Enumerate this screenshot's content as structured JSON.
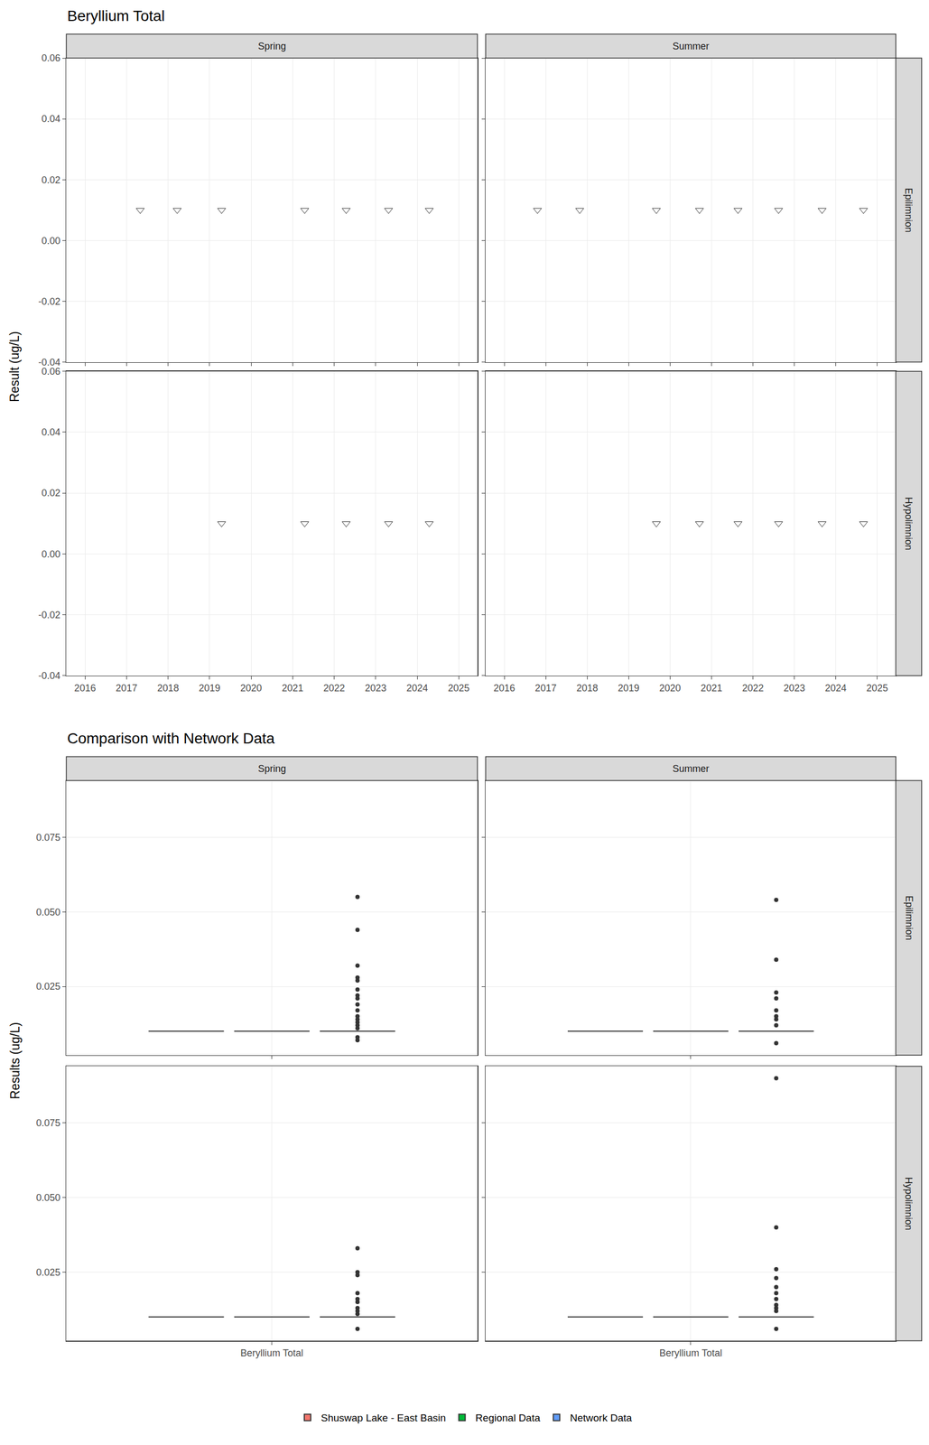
{
  "chart_data": [
    {
      "type": "scatter",
      "title": "Beryllium Total",
      "y_label": "Result (ug/L)",
      "columns": [
        "Spring",
        "Summer"
      ],
      "rows": [
        "Epilimnion",
        "Hypolimnion"
      ],
      "marker": "triangle-down-open",
      "grid": true,
      "xlim": [
        2015.55,
        2025.45
      ],
      "xticks": [
        2016,
        2017,
        2018,
        2019,
        2020,
        2021,
        2022,
        2023,
        2024,
        2025
      ],
      "ylim": [
        -0.04,
        0.06
      ],
      "yticks": [
        -0.04,
        -0.02,
        {
          "value": 0,
          "label": "0.00"
        },
        0.02,
        0.04,
        0.06
      ],
      "panels": [
        {
          "column": "Spring",
          "row": "Epilimnion",
          "x": [
            2017.33,
            2018.22,
            2019.29,
            2021.29,
            2022.29,
            2023.31,
            2024.29
          ],
          "values": [
            0.01,
            0.01,
            0.01,
            0.01,
            0.01,
            0.01,
            0.01
          ]
        },
        {
          "column": "Summer",
          "row": "Epilimnion",
          "x": [
            2016.8,
            2017.82,
            2019.67,
            2020.71,
            2021.64,
            2022.62,
            2023.67,
            2024.67
          ],
          "values": [
            0.01,
            0.01,
            0.01,
            0.01,
            0.01,
            0.01,
            0.01,
            0.01
          ]
        },
        {
          "column": "Spring",
          "row": "Hypolimnion",
          "x": [
            2019.29,
            2021.29,
            2022.29,
            2023.31,
            2024.29
          ],
          "values": [
            0.01,
            0.01,
            0.01,
            0.01,
            0.01
          ]
        },
        {
          "column": "Summer",
          "row": "Hypolimnion",
          "x": [
            2019.67,
            2020.71,
            2021.64,
            2022.62,
            2023.67,
            2024.67
          ],
          "values": [
            0.01,
            0.01,
            0.01,
            0.01,
            0.01,
            0.01
          ]
        }
      ]
    },
    {
      "type": "box",
      "title": "Comparison with Network Data",
      "y_label": "Results (ug/L)",
      "categories": [
        "Beryllium Total"
      ],
      "columns": [
        "Spring",
        "Summer"
      ],
      "rows": [
        "Epilimnion",
        "Hypolimnion"
      ],
      "grid": true,
      "legend": "bottom",
      "ylim": [
        0.002,
        0.094
      ],
      "yticks": [
        0.025,
        {
          "value": 0.05,
          "label": "0.050"
        },
        0.075
      ],
      "series": [
        {
          "name": "Shuswap Lake - East Basin",
          "color": "#F8766D",
          "panels": [
            {
              "column": "Spring",
              "row": "Epilimnion",
              "q1": 0.01,
              "median": 0.01,
              "q3": 0.01,
              "whisker_low": 0.01,
              "whisker_high": 0.01,
              "outliers": []
            },
            {
              "column": "Summer",
              "row": "Epilimnion",
              "q1": 0.01,
              "median": 0.01,
              "q3": 0.01,
              "whisker_low": 0.01,
              "whisker_high": 0.01,
              "outliers": []
            },
            {
              "column": "Spring",
              "row": "Hypolimnion",
              "q1": 0.01,
              "median": 0.01,
              "q3": 0.01,
              "whisker_low": 0.01,
              "whisker_high": 0.01,
              "outliers": []
            },
            {
              "column": "Summer",
              "row": "Hypolimnion",
              "q1": 0.01,
              "median": 0.01,
              "q3": 0.01,
              "whisker_low": 0.01,
              "whisker_high": 0.01,
              "outliers": []
            }
          ]
        },
        {
          "name": "Regional Data",
          "color": "#00BA38",
          "panels": [
            {
              "column": "Spring",
              "row": "Epilimnion",
              "q1": 0.01,
              "median": 0.01,
              "q3": 0.01,
              "whisker_low": 0.01,
              "whisker_high": 0.01,
              "outliers": []
            },
            {
              "column": "Summer",
              "row": "Epilimnion",
              "q1": 0.01,
              "median": 0.01,
              "q3": 0.01,
              "whisker_low": 0.01,
              "whisker_high": 0.01,
              "outliers": []
            },
            {
              "column": "Spring",
              "row": "Hypolimnion",
              "q1": 0.01,
              "median": 0.01,
              "q3": 0.01,
              "whisker_low": 0.01,
              "whisker_high": 0.01,
              "outliers": []
            },
            {
              "column": "Summer",
              "row": "Hypolimnion",
              "q1": 0.01,
              "median": 0.01,
              "q3": 0.01,
              "whisker_low": 0.01,
              "whisker_high": 0.01,
              "outliers": []
            }
          ]
        },
        {
          "name": "Network Data",
          "color": "#619CFF",
          "panels": [
            {
              "column": "Spring",
              "row": "Epilimnion",
              "q1": 0.01,
              "median": 0.01,
              "q3": 0.01,
              "whisker_low": 0.01,
              "whisker_high": 0.01,
              "outliers": [
                0.055,
                0.044,
                0.032,
                0.028,
                0.027,
                0.024,
                0.022,
                0.021,
                0.019,
                0.017,
                0.015,
                0.014,
                0.013,
                0.012,
                0.011,
                0.008,
                0.007
              ]
            },
            {
              "column": "Summer",
              "row": "Epilimnion",
              "q1": 0.01,
              "median": 0.01,
              "q3": 0.01,
              "whisker_low": 0.01,
              "whisker_high": 0.01,
              "outliers": [
                0.054,
                0.034,
                0.023,
                0.021,
                0.017,
                0.015,
                0.014,
                0.012,
                0.006
              ]
            },
            {
              "column": "Spring",
              "row": "Hypolimnion",
              "q1": 0.01,
              "median": 0.01,
              "q3": 0.01,
              "whisker_low": 0.01,
              "whisker_high": 0.01,
              "outliers": [
                0.033,
                0.025,
                0.024,
                0.018,
                0.016,
                0.015,
                0.013,
                0.012,
                0.011,
                0.006
              ]
            },
            {
              "column": "Summer",
              "row": "Hypolimnion",
              "q1": 0.01,
              "median": 0.01,
              "q3": 0.01,
              "whisker_low": 0.01,
              "whisker_high": 0.01,
              "outliers": [
                0.09,
                0.04,
                0.026,
                0.023,
                0.02,
                0.018,
                0.016,
                0.014,
                0.013,
                0.012,
                0.006
              ]
            }
          ]
        }
      ]
    }
  ]
}
